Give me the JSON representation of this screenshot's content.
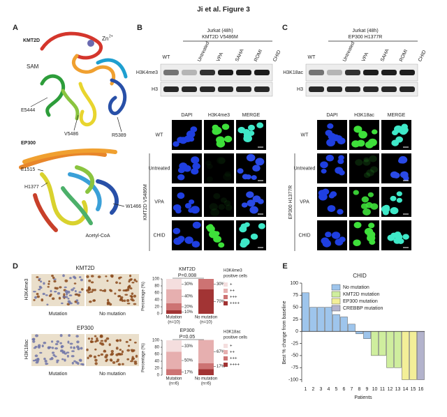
{
  "title": "Ji et al. Figure 3",
  "panel_a": {
    "letter": "A",
    "kmt2d": {
      "name": "KMT2D",
      "ion": "Zn",
      "charge": "2+",
      "ligand": "SAM",
      "residues": [
        "E5444",
        "V5486",
        "R5389"
      ]
    },
    "ep300": {
      "name": "EP300",
      "residues": [
        "E1515",
        "H1377",
        "W1466"
      ],
      "ligand": "Acetyl-CoA"
    }
  },
  "panel_b": {
    "letter": "B",
    "cell_line": "Jurkat (48h)",
    "mutant": "KMT2D V5486M",
    "lanes": [
      "WT",
      "Untreated",
      "VPA",
      "SAHA",
      "ROMI",
      "CHID"
    ],
    "blots": [
      "H3K4me3",
      "H3"
    ],
    "stains": [
      "DAPI",
      "H3K4me3",
      "MERGE"
    ],
    "conditions": [
      "WT",
      "Untreated",
      "VPA",
      "CHID"
    ],
    "group_label": "KMT2D V5486M"
  },
  "panel_c": {
    "letter": "C",
    "cell_line": "Jurkat (48h)",
    "mutant": "EP300 H1377R",
    "lanes": [
      "WT",
      "Untreated",
      "VPA",
      "SAHA",
      "ROMI",
      "CHID"
    ],
    "blots": [
      "H3K18ac",
      "H3"
    ],
    "stains": [
      "DAPI",
      "H3K18ac",
      "MERGE"
    ],
    "conditions": [
      "WT",
      "Untreated",
      "VPA",
      "CHID"
    ],
    "group_label": "EP300 H1377R"
  },
  "panel_d": {
    "letter": "D",
    "ihc": [
      {
        "gene": "KMT2D",
        "mark": "H3K4me3",
        "groups": [
          "Mutation",
          "No mutation"
        ]
      },
      {
        "gene": "EP300",
        "mark": "H3K18ac",
        "groups": [
          "Mutation",
          "No mutation"
        ]
      }
    ],
    "charts": [
      {
        "type": "bar",
        "stacked": true,
        "title": "KMT2D",
        "p_value": "P=0.008",
        "ylabel": "Percentage (%)",
        "ylim": [
          0,
          100
        ],
        "yticks": [
          0,
          20,
          40,
          60,
          80,
          100
        ],
        "categories": [
          "Mutation",
          "No mutation"
        ],
        "sample_sizes": [
          "(n=10)",
          "(n=10)"
        ],
        "legend_title": [
          "H3K4me3",
          "positive cells"
        ],
        "series": [
          {
            "name": "+",
            "color": "#f4dede",
            "values": [
              30,
              0
            ],
            "value_labels": [
              "30%",
              null
            ]
          },
          {
            "name": "++",
            "color": "#e6afaf",
            "values": [
              40,
              0
            ],
            "value_labels": [
              "40%",
              null
            ]
          },
          {
            "name": "+++",
            "color": "#cd7373",
            "values": [
              20,
              30
            ],
            "value_labels": [
              "20%",
              "30%"
            ]
          },
          {
            "name": "++++",
            "color": "#a23434",
            "values": [
              10,
              70
            ],
            "value_labels": [
              "10%",
              "70%"
            ]
          }
        ]
      },
      {
        "type": "bar",
        "stacked": true,
        "title": "EP300",
        "p_value": "P=0.05",
        "ylabel": "Percentage (%)",
        "ylim": [
          0,
          100
        ],
        "yticks": [
          0,
          20,
          40,
          60,
          80,
          100
        ],
        "categories": [
          "Mutation",
          "No mutation"
        ],
        "sample_sizes": [
          "(n=6)",
          "(n=6)"
        ],
        "legend_title": [
          "H3K18ac",
          "positive cells"
        ],
        "series": [
          {
            "name": "+",
            "color": "#f4dede",
            "values": [
              33,
              0
            ],
            "value_labels": [
              "33%",
              null
            ]
          },
          {
            "name": "++",
            "color": "#e6afaf",
            "values": [
              50,
              67
            ],
            "value_labels": [
              "50%",
              "67%"
            ]
          },
          {
            "name": "+++",
            "color": "#cd7373",
            "values": [
              17,
              17
            ],
            "value_labels": [
              "17%",
              "17%"
            ]
          },
          {
            "name": "++++",
            "color": "#a23434",
            "values": [
              0,
              17
            ],
            "value_labels": [
              null,
              null
            ]
          }
        ]
      }
    ]
  },
  "panel_e": {
    "letter": "E",
    "chart": {
      "type": "bar",
      "title": "CHID",
      "ylabel": "Best % change from baseline",
      "xlabel": "Patients",
      "ylim": [
        -105,
        100
      ],
      "yticks": [
        100,
        75,
        50,
        25,
        0,
        -25,
        -50,
        -75,
        -100
      ],
      "categories": [
        "1",
        "2",
        "3",
        "4",
        "5",
        "6",
        "7",
        "8",
        "9",
        "10",
        "11",
        "12",
        "13",
        "14",
        "15",
        "16"
      ],
      "values": [
        80,
        50,
        50,
        50,
        35,
        30,
        15,
        -5,
        -15,
        -50,
        -50,
        -75,
        -75,
        -100,
        -100,
        -100
      ],
      "groups": [
        0,
        0,
        0,
        0,
        0,
        0,
        0,
        0,
        0,
        1,
        1,
        1,
        1,
        2,
        2,
        3
      ],
      "legend": [
        {
          "name": "No mutation",
          "color": "#9ec5ec"
        },
        {
          "name": "KMT2D mutation",
          "color": "#cfee9e"
        },
        {
          "name": "EP300 mutation",
          "color": "#f3ef98"
        },
        {
          "name": "CREBBP mutation",
          "color": "#b3b3cc"
        }
      ]
    }
  }
}
